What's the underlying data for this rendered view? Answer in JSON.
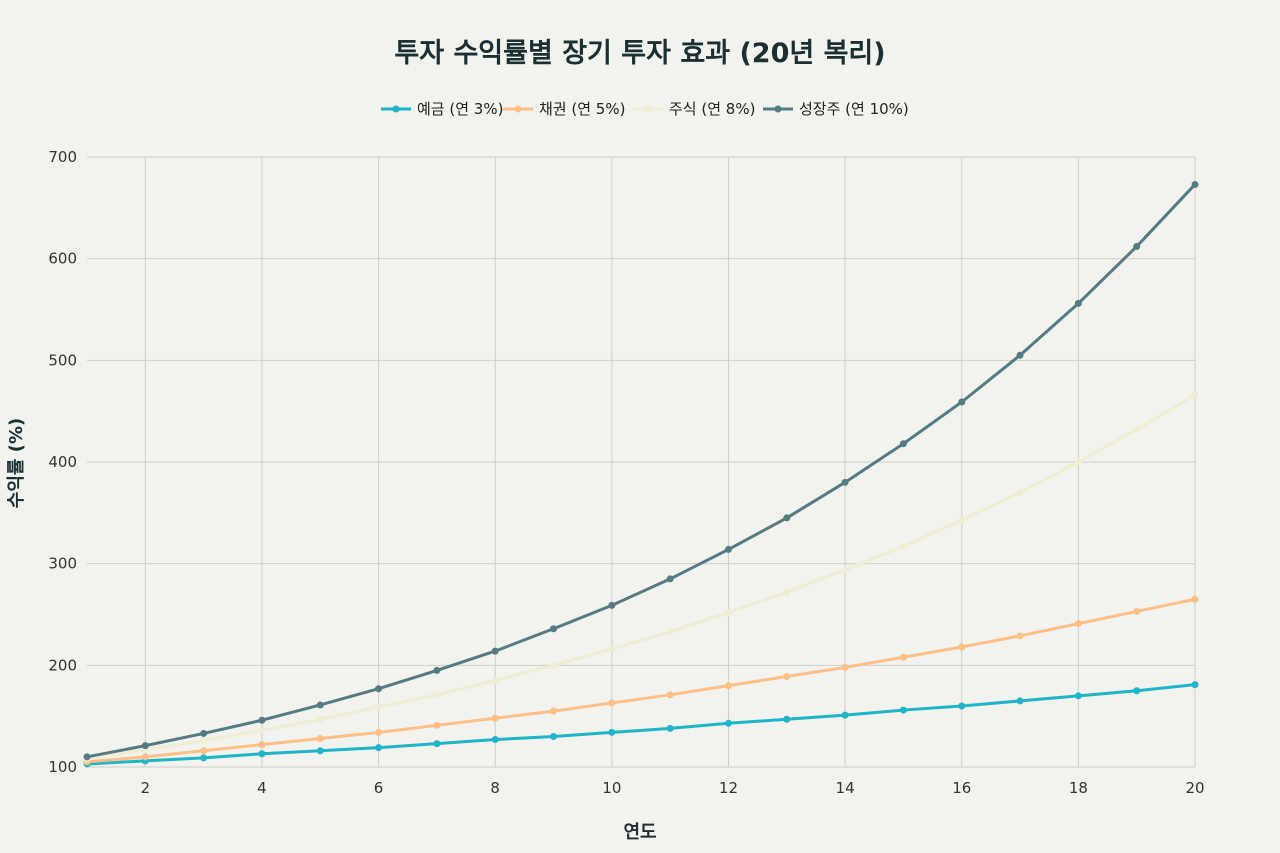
{
  "chart_data": {
    "type": "line",
    "title": "투자 수익률별 장기 투자 효과 (20년 복리)",
    "xlabel": "연도",
    "ylabel": "수익률 (%)",
    "x": [
      1,
      2,
      3,
      4,
      5,
      6,
      7,
      8,
      9,
      10,
      11,
      12,
      13,
      14,
      15,
      16,
      17,
      18,
      19,
      20
    ],
    "xlim": [
      1,
      20
    ],
    "ylim": [
      100,
      700
    ],
    "xticks": [
      2,
      4,
      6,
      8,
      10,
      12,
      14,
      16,
      18,
      20
    ],
    "yticks": [
      100,
      200,
      300,
      400,
      500,
      600,
      700
    ],
    "grid": true,
    "legend_position": "top-center",
    "series": [
      {
        "name": "예금 (연 3%)",
        "color": "#1fb4c8",
        "values": [
          103,
          106,
          109,
          113,
          116,
          119,
          123,
          127,
          130,
          134,
          138,
          143,
          147,
          151,
          156,
          160,
          165,
          170,
          175,
          181
        ]
      },
      {
        "name": "채권 (연 5%)",
        "color": "#fdbf85",
        "values": [
          105,
          110,
          116,
          122,
          128,
          134,
          141,
          148,
          155,
          163,
          171,
          180,
          189,
          198,
          208,
          218,
          229,
          241,
          253,
          265
        ]
      },
      {
        "name": "주식 (연 8%)",
        "color": "#efedd3",
        "values": [
          108,
          117,
          126,
          136,
          147,
          159,
          171,
          185,
          200,
          216,
          233,
          252,
          272,
          294,
          317,
          343,
          370,
          400,
          432,
          466
        ]
      },
      {
        "name": "성장주 (연 10%)",
        "color": "#547b82",
        "values": [
          110,
          121,
          133,
          146,
          161,
          177,
          195,
          214,
          236,
          259,
          285,
          314,
          345,
          380,
          418,
          459,
          505,
          556,
          612,
          673
        ]
      }
    ]
  }
}
